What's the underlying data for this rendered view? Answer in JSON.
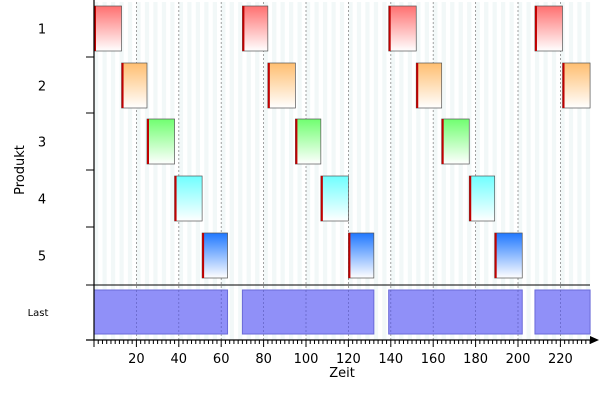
{
  "chart_data": {
    "type": "gantt",
    "xlabel": "Zeit",
    "ylabel": "Produkt",
    "xlim": [
      0,
      235
    ],
    "xticks": [
      20,
      40,
      60,
      80,
      100,
      120,
      140,
      160,
      180,
      200,
      220
    ],
    "grid": true,
    "products": [
      "1",
      "2",
      "3",
      "4",
      "5"
    ],
    "load_label": "Last",
    "colors": {
      "1": "#ff7070",
      "2": "#ffbe70",
      "3": "#70ff70",
      "4": "#70ffff",
      "5": "#1f78ff",
      "load": "#9090f8",
      "band": "#f2f8f8"
    },
    "tasks": [
      {
        "product": "1",
        "start": 0,
        "end": 13
      },
      {
        "product": "1",
        "start": 70,
        "end": 82
      },
      {
        "product": "1",
        "start": 139,
        "end": 152
      },
      {
        "product": "1",
        "start": 208,
        "end": 221
      },
      {
        "product": "2",
        "start": 13,
        "end": 25
      },
      {
        "product": "2",
        "start": 82,
        "end": 95
      },
      {
        "product": "2",
        "start": 152,
        "end": 164
      },
      {
        "product": "2",
        "start": 221,
        "end": 234
      },
      {
        "product": "3",
        "start": 25,
        "end": 38
      },
      {
        "product": "3",
        "start": 95,
        "end": 107
      },
      {
        "product": "3",
        "start": 164,
        "end": 177
      },
      {
        "product": "4",
        "start": 38,
        "end": 51
      },
      {
        "product": "4",
        "start": 107,
        "end": 120
      },
      {
        "product": "4",
        "start": 177,
        "end": 189
      },
      {
        "product": "5",
        "start": 51,
        "end": 63
      },
      {
        "product": "5",
        "start": 120,
        "end": 132
      },
      {
        "product": "5",
        "start": 189,
        "end": 202
      }
    ],
    "load": [
      {
        "start": 0,
        "end": 63
      },
      {
        "start": 70,
        "end": 132
      },
      {
        "start": 139,
        "end": 202
      },
      {
        "start": 208,
        "end": 234
      }
    ]
  }
}
